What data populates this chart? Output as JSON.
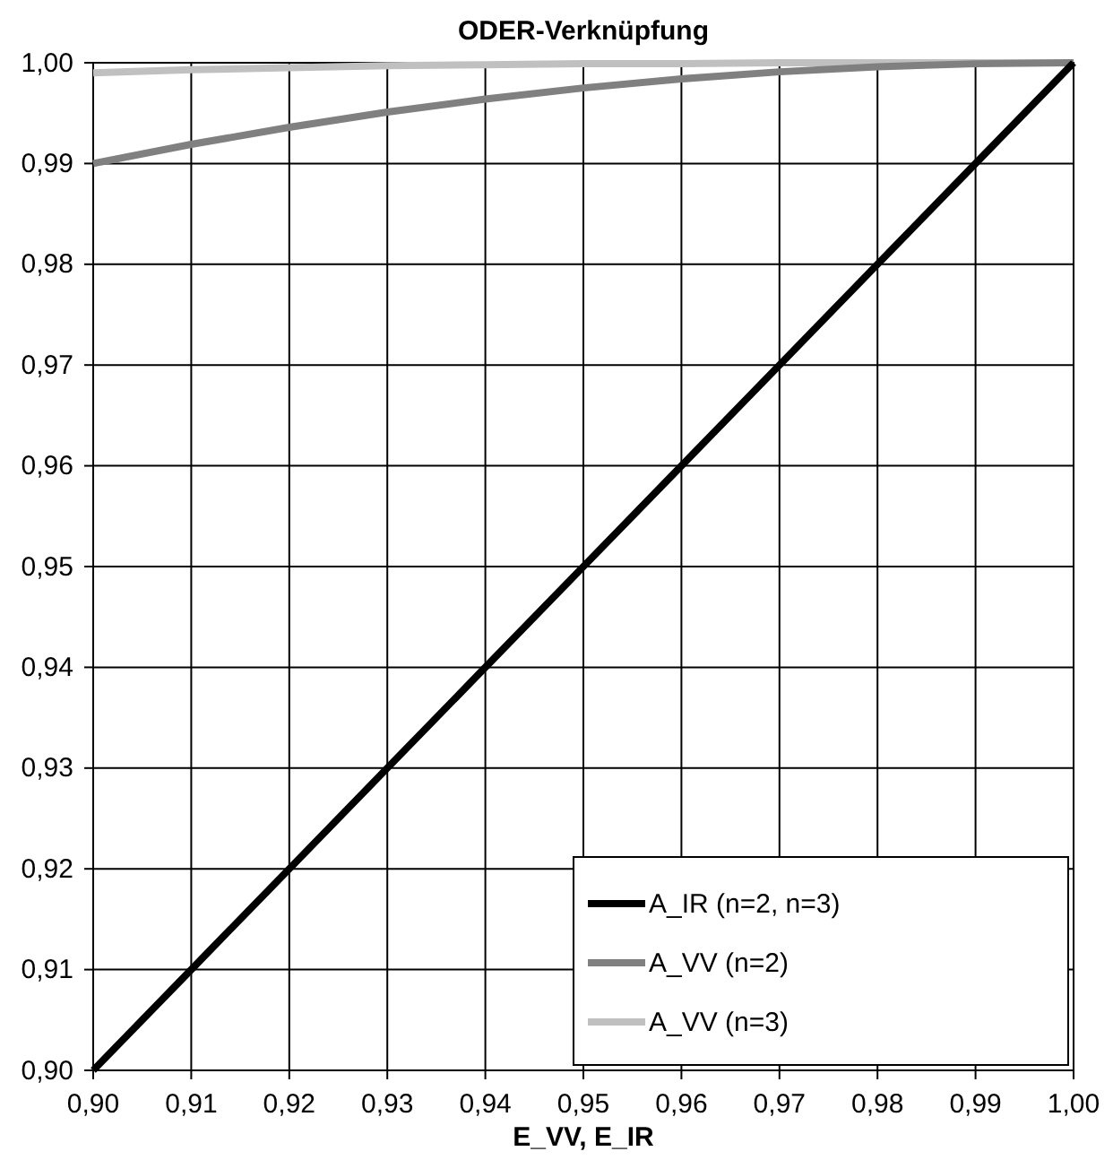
{
  "chart_data": {
    "type": "line",
    "title": "ODER-Verknüpfung",
    "xlabel": "E_VV, E_IR",
    "x": [
      0.9,
      0.91,
      0.92,
      0.93,
      0.94,
      0.95,
      0.96,
      0.97,
      0.98,
      0.99,
      1.0
    ],
    "series": [
      {
        "name": "A_IR (n=2, n=3)",
        "color": "#000000",
        "values": [
          0.9,
          0.91,
          0.92,
          0.93,
          0.94,
          0.95,
          0.96,
          0.97,
          0.98,
          0.99,
          1.0
        ]
      },
      {
        "name": "A_VV (n=2)",
        "color": "#808080",
        "values": [
          0.99,
          0.9919,
          0.9936,
          0.9951,
          0.9964,
          0.9975,
          0.9984,
          0.9991,
          0.9996,
          0.9999,
          1.0
        ]
      },
      {
        "name": "A_VV (n=3)",
        "color": "#c0c0c0",
        "values": [
          0.999,
          0.9993,
          0.9995,
          0.9997,
          0.9998,
          0.9999,
          0.9999,
          1.0,
          1.0,
          1.0,
          1.0
        ]
      }
    ],
    "xlim": [
      0.9,
      1.0
    ],
    "ylim": [
      0.9,
      1.0
    ],
    "xticks": [
      {
        "value": 0.9,
        "label": "0,90"
      },
      {
        "value": 0.91,
        "label": "0,91"
      },
      {
        "value": 0.92,
        "label": "0,92"
      },
      {
        "value": 0.93,
        "label": "0,93"
      },
      {
        "value": 0.94,
        "label": "0,94"
      },
      {
        "value": 0.95,
        "label": "0,95"
      },
      {
        "value": 0.96,
        "label": "0,96"
      },
      {
        "value": 0.97,
        "label": "0,97"
      },
      {
        "value": 0.98,
        "label": "0,98"
      },
      {
        "value": 0.99,
        "label": "0,99"
      },
      {
        "value": 1.0,
        "label": "1,00"
      }
    ],
    "yticks": [
      {
        "value": 0.9,
        "label": "0,90"
      },
      {
        "value": 0.91,
        "label": "0,91"
      },
      {
        "value": 0.92,
        "label": "0,92"
      },
      {
        "value": 0.93,
        "label": "0,93"
      },
      {
        "value": 0.94,
        "label": "0,94"
      },
      {
        "value": 0.95,
        "label": "0,95"
      },
      {
        "value": 0.96,
        "label": "0,96"
      },
      {
        "value": 0.97,
        "label": "0,97"
      },
      {
        "value": 0.98,
        "label": "0,98"
      },
      {
        "value": 0.99,
        "label": "0,99"
      },
      {
        "value": 1.0,
        "label": "1,00"
      }
    ],
    "grid": true,
    "legend": "bottom right",
    "marker": "none",
    "line_style": "solid"
  }
}
